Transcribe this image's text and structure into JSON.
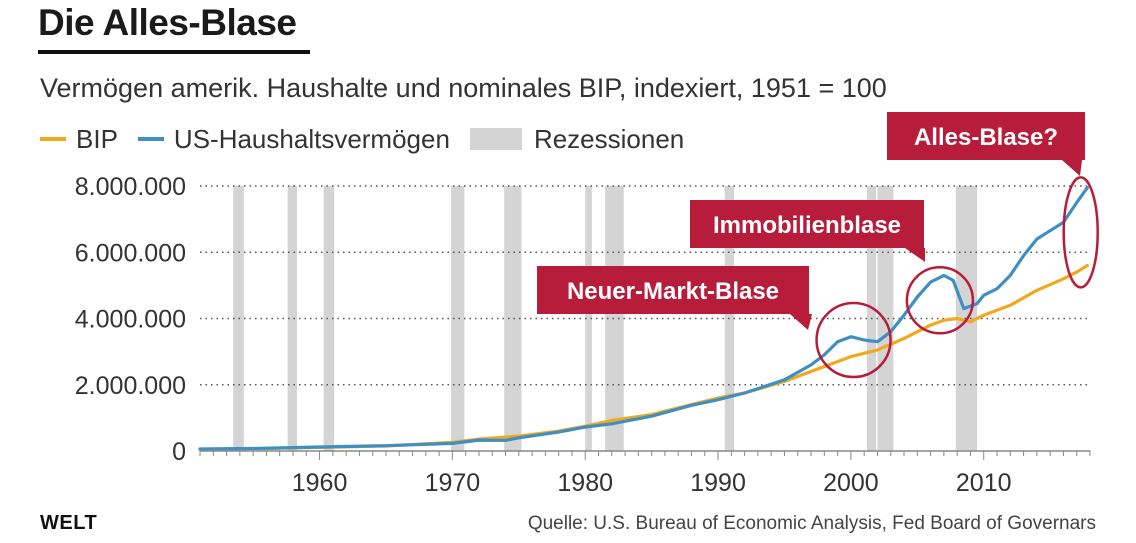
{
  "title": "Die Alles-Blase",
  "subtitle": "Vermögen amerik. Haushalte und nominales BIP, indexiert, 1951 = 100",
  "legend": {
    "bip": "BIP",
    "haushalt": "US-Haushaltsvermögen",
    "rezession": "Rezessionen"
  },
  "colors": {
    "bip": "#f0a81c",
    "haushalt": "#3f8fc4",
    "rezession": "#d4d4d4",
    "annotation": "#b71c3a",
    "grid": "#555555"
  },
  "brand": "WELT",
  "source": "Quelle: U.S. Bureau of Economic Analysis, Fed Board of Governars",
  "chart_data": {
    "type": "line",
    "title": "Die Alles-Blase",
    "subtitle": "Vermögen amerik. Haushalte und nominales BIP, indexiert, 1951 = 100",
    "xlabel": "",
    "ylabel": "",
    "xlim": [
      1951,
      2018
    ],
    "ylim": [
      0,
      8000000
    ],
    "grid": "horizontal-dotted",
    "legend_position": "top-left",
    "x_ticks": [
      1960,
      1970,
      1980,
      1990,
      2000,
      2010
    ],
    "x_tick_labels": [
      "1960",
      "1970",
      "1980",
      "1990",
      "2000",
      "2010"
    ],
    "y_ticks": [
      0,
      2000000,
      4000000,
      6000000,
      8000000
    ],
    "y_tick_labels": [
      "0",
      "2.000.000",
      "4.000.000",
      "6.000.000",
      "8.000.000"
    ],
    "series": [
      {
        "name": "BIP",
        "color": "#f0a81c",
        "points": [
          [
            1951,
            50000
          ],
          [
            1955,
            70000
          ],
          [
            1960,
            110000
          ],
          [
            1965,
            150000
          ],
          [
            1970,
            260000
          ],
          [
            1972,
            360000
          ],
          [
            1975,
            450000
          ],
          [
            1978,
            600000
          ],
          [
            1980,
            750000
          ],
          [
            1982,
            920000
          ],
          [
            1985,
            1100000
          ],
          [
            1988,
            1400000
          ],
          [
            1990,
            1600000
          ],
          [
            1992,
            1750000
          ],
          [
            1995,
            2100000
          ],
          [
            1998,
            2550000
          ],
          [
            2000,
            2850000
          ],
          [
            2002,
            3050000
          ],
          [
            2004,
            3400000
          ],
          [
            2006,
            3800000
          ],
          [
            2007,
            3950000
          ],
          [
            2008,
            4000000
          ],
          [
            2009,
            3900000
          ],
          [
            2010,
            4100000
          ],
          [
            2012,
            4400000
          ],
          [
            2014,
            4850000
          ],
          [
            2016,
            5200000
          ],
          [
            2017,
            5400000
          ],
          [
            2017.8,
            5600000
          ]
        ]
      },
      {
        "name": "US-Haushaltsvermögen",
        "color": "#3f8fc4",
        "points": [
          [
            1951,
            60000
          ],
          [
            1955,
            75000
          ],
          [
            1960,
            120000
          ],
          [
            1965,
            160000
          ],
          [
            1970,
            230000
          ],
          [
            1972,
            330000
          ],
          [
            1974,
            320000
          ],
          [
            1975,
            400000
          ],
          [
            1978,
            570000
          ],
          [
            1980,
            720000
          ],
          [
            1982,
            820000
          ],
          [
            1985,
            1050000
          ],
          [
            1988,
            1380000
          ],
          [
            1990,
            1550000
          ],
          [
            1992,
            1750000
          ],
          [
            1995,
            2150000
          ],
          [
            1997,
            2600000
          ],
          [
            1998,
            2900000
          ],
          [
            1999,
            3300000
          ],
          [
            2000,
            3450000
          ],
          [
            2001,
            3350000
          ],
          [
            2002,
            3300000
          ],
          [
            2003,
            3600000
          ],
          [
            2004,
            4100000
          ],
          [
            2005,
            4650000
          ],
          [
            2006,
            5100000
          ],
          [
            2007,
            5300000
          ],
          [
            2007.7,
            5150000
          ],
          [
            2008.5,
            4300000
          ],
          [
            2009.5,
            4450000
          ],
          [
            2010,
            4700000
          ],
          [
            2011,
            4900000
          ],
          [
            2012,
            5300000
          ],
          [
            2013,
            5900000
          ],
          [
            2014,
            6400000
          ],
          [
            2015,
            6650000
          ],
          [
            2016,
            6900000
          ],
          [
            2017,
            7500000
          ],
          [
            2017.8,
            7950000
          ]
        ]
      }
    ],
    "recessions": [
      [
        1953.5,
        1954.3
      ],
      [
        1957.6,
        1958.3
      ],
      [
        1960.3,
        1961.1
      ],
      [
        1969.9,
        1970.9
      ],
      [
        1973.9,
        1975.2
      ],
      [
        1980.0,
        1980.5
      ],
      [
        1981.5,
        1982.9
      ],
      [
        1990.5,
        1991.2
      ],
      [
        2001.2,
        2001.9
      ],
      [
        2002.0,
        2003.2
      ],
      [
        2007.9,
        2009.5
      ]
    ],
    "annotations": [
      {
        "label": "Neuer-Markt-Blase",
        "circle_center": [
          2000.2,
          3350000
        ]
      },
      {
        "label": "Immobilienblase",
        "circle_center": [
          2006.7,
          4550000
        ]
      },
      {
        "label": "Alles-Blase?",
        "circle_center": [
          2017.3,
          6600000
        ]
      }
    ]
  }
}
